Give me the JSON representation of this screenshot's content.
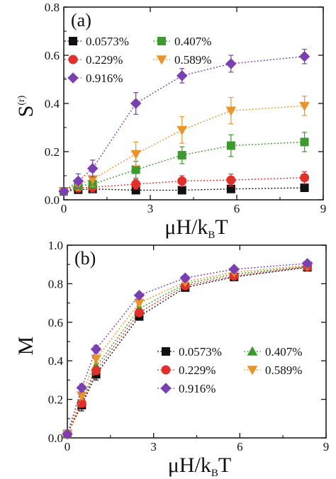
{
  "colors": {
    "s0573": "#111111",
    "s229": "#e0302c",
    "s407": "#3c9a2e",
    "s589": "#e9952a",
    "s916": "#7a3fb0"
  },
  "chart_data": [
    {
      "type": "line",
      "panel_label": "(a)",
      "xlabel_main": "μH/k",
      "xlabel_sub": "B",
      "xlabel_tail": "T",
      "ylabel_main": "S",
      "ylabel_sup": "(r)",
      "xlim": [
        0,
        9
      ],
      "ylim": [
        0,
        0.8
      ],
      "xticks": [
        "0",
        "3",
        "6",
        "9"
      ],
      "yticks": [
        "0.0",
        "0.2",
        "0.4",
        "0.6",
        "0.8"
      ],
      "x": [
        0.0,
        0.5,
        1.0,
        2.5,
        4.1,
        5.8,
        8.35
      ],
      "series": [
        {
          "name": "0.0573%",
          "marker": "square",
          "color": "#111111",
          "values": [
            0.035,
            0.042,
            0.045,
            0.04,
            0.04,
            0.045,
            0.05
          ],
          "err": [
            0.012,
            0.015,
            0.015,
            0.012,
            0.012,
            0.015,
            0.015
          ]
        },
        {
          "name": "0.229%",
          "marker": "circle",
          "color": "#e0302c",
          "values": [
            0.035,
            0.05,
            0.052,
            0.065,
            0.078,
            0.082,
            0.092
          ],
          "err": [
            0.012,
            0.018,
            0.02,
            0.02,
            0.022,
            0.025,
            0.025
          ]
        },
        {
          "name": "0.407%",
          "marker": "square",
          "color": "#3c9a2e",
          "values": [
            0.035,
            0.058,
            0.065,
            0.125,
            0.185,
            0.225,
            0.24
          ],
          "err": [
            0.012,
            0.02,
            0.022,
            0.035,
            0.035,
            0.045,
            0.04
          ]
        },
        {
          "name": "0.589%",
          "marker": "triangle-down",
          "color": "#e9952a",
          "values": [
            0.035,
            0.065,
            0.085,
            0.19,
            0.29,
            0.37,
            0.39
          ],
          "err": [
            0.012,
            0.025,
            0.03,
            0.05,
            0.055,
            0.055,
            0.04
          ]
        },
        {
          "name": "0.916%",
          "marker": "diamond",
          "color": "#7a3fb0",
          "values": [
            0.035,
            0.078,
            0.13,
            0.4,
            0.515,
            0.565,
            0.595
          ],
          "err": [
            0.012,
            0.03,
            0.035,
            0.045,
            0.03,
            0.035,
            0.03
          ]
        }
      ]
    },
    {
      "type": "line",
      "panel_label": "(b)",
      "xlabel_main": "μH/k",
      "xlabel_sub": "B",
      "xlabel_tail": "T",
      "ylabel_main": "M",
      "xlim": [
        0,
        9
      ],
      "ylim": [
        0,
        1.0
      ],
      "xticks": [
        "0",
        "3",
        "6",
        "9"
      ],
      "yticks": [
        "0.0",
        "0.2",
        "0.4",
        "0.6",
        "0.8",
        "1.0"
      ],
      "x": [
        0.0,
        0.5,
        1.0,
        2.5,
        4.1,
        5.8,
        8.35
      ],
      "series": [
        {
          "name": "0.0573%",
          "marker": "square",
          "color": "#111111",
          "values": [
            0.02,
            0.17,
            0.33,
            0.63,
            0.78,
            0.835,
            0.885
          ],
          "err": [
            0.005,
            0.03,
            0.03,
            0.015,
            0.01,
            0.01,
            0.01
          ]
        },
        {
          "name": "0.407%",
          "marker": "triangle-up",
          "color": "#3c9a2e",
          "values": [
            0.02,
            0.19,
            0.37,
            0.67,
            0.8,
            0.85,
            0.89
          ],
          "err": [
            0.005,
            0.02,
            0.02,
            0.01,
            0.01,
            0.01,
            0.01
          ]
        },
        {
          "name": "0.229%",
          "marker": "circle",
          "color": "#e0302c",
          "values": [
            0.02,
            0.18,
            0.35,
            0.65,
            0.79,
            0.84,
            0.888
          ],
          "err": [
            0.005,
            0.02,
            0.02,
            0.01,
            0.01,
            0.01,
            0.01
          ]
        },
        {
          "name": "0.589%",
          "marker": "triangle-down",
          "color": "#e9952a",
          "values": [
            0.02,
            0.22,
            0.41,
            0.7,
            0.81,
            0.86,
            0.895
          ],
          "err": [
            0.005,
            0.02,
            0.02,
            0.01,
            0.01,
            0.01,
            0.01
          ]
        },
        {
          "name": "0.916%",
          "marker": "diamond",
          "color": "#7a3fb0",
          "values": [
            0.02,
            0.26,
            0.46,
            0.74,
            0.83,
            0.875,
            0.905
          ],
          "err": [
            0.005,
            0.02,
            0.02,
            0.01,
            0.01,
            0.01,
            0.01
          ]
        }
      ]
    }
  ]
}
